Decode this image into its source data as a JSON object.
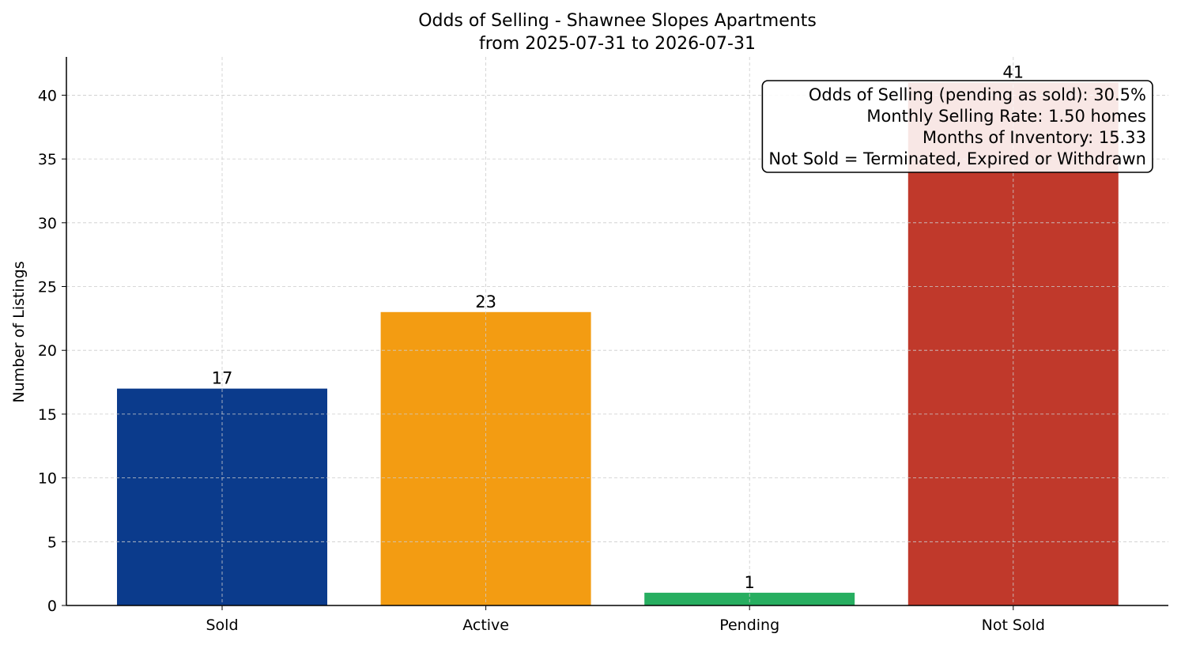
{
  "chart_data": {
    "type": "bar",
    "title": "Odds of Selling - Shawnee Slopes Apartments",
    "subtitle": "from 2025-07-31 to 2026-07-31",
    "xlabel": "",
    "ylabel": "Number of Listings",
    "categories": [
      "Sold",
      "Active",
      "Pending",
      "Not Sold"
    ],
    "values": [
      17,
      23,
      1,
      41
    ],
    "colors": [
      "#0b3b8c",
      "#f39c12",
      "#27ae60",
      "#c0392b"
    ],
    "ylim": [
      0,
      43
    ],
    "yticks": [
      0,
      5,
      10,
      15,
      20,
      25,
      30,
      35,
      40
    ],
    "grid": true,
    "annotation": {
      "lines": [
        "Odds of Selling (pending as sold): 30.5%",
        "Monthly Selling Rate: 1.50 homes",
        "Months of Inventory: 15.33",
        "Not Sold = Terminated, Expired or Withdrawn"
      ],
      "placement": "top-right"
    }
  }
}
